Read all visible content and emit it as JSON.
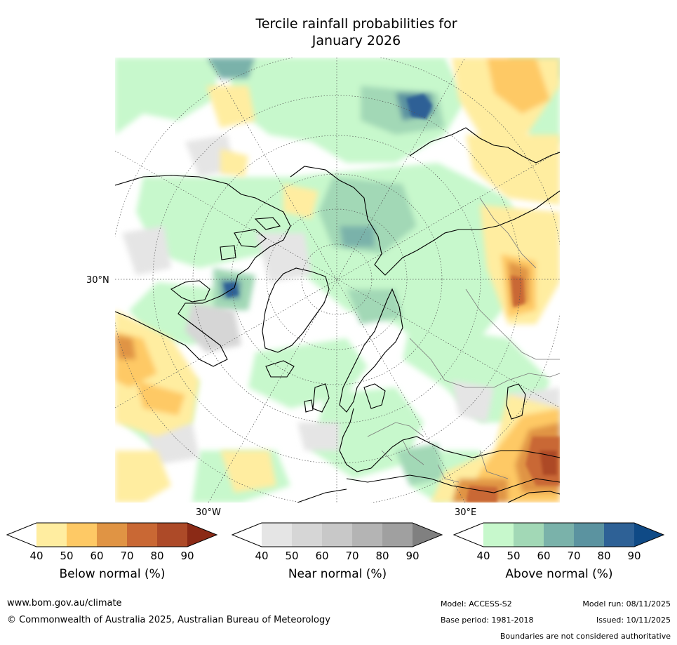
{
  "title_line1": "Tercile rainfall probabilities for",
  "title_line2": "January 2026",
  "map": {
    "lat_label": "30°N",
    "lon_label_west": "30°W",
    "lon_label_east": "30°E"
  },
  "colorbars": {
    "below": {
      "label": "Below normal (%)",
      "ticks": [
        "40",
        "50",
        "60",
        "70",
        "80",
        "90"
      ],
      "colors": [
        "#ffffff",
        "#ffeda0",
        "#fec965",
        "#e09444",
        "#c96834",
        "#ad4a28",
        "#8b2a16"
      ]
    },
    "near": {
      "label": "Near normal (%)",
      "ticks": [
        "40",
        "50",
        "60",
        "70",
        "80",
        "90"
      ],
      "colors": [
        "#ffffff",
        "#e5e5e5",
        "#d6d6d6",
        "#c8c8c8",
        "#b4b4b4",
        "#a0a0a0",
        "#808080"
      ]
    },
    "above": {
      "label": "Above normal (%)",
      "ticks": [
        "40",
        "50",
        "60",
        "70",
        "80",
        "90"
      ],
      "colors": [
        "#ffffff",
        "#c7f8cc",
        "#a2d8b6",
        "#7ab2aa",
        "#5b93a0",
        "#2e6196",
        "#0f4a86"
      ]
    }
  },
  "footer": {
    "url": "www.bom.gov.au/climate",
    "copyright": "© Commonwealth of Australia 2025, Australian Bureau of Meteorology",
    "model": "Model: ACCESS-S2",
    "base_period": "Base period: 1981-2018",
    "model_run": "Model run: 08/11/2025",
    "issued": "Issued: 10/11/2025",
    "disclaimer": "Boundaries are not considered authoritative"
  }
}
